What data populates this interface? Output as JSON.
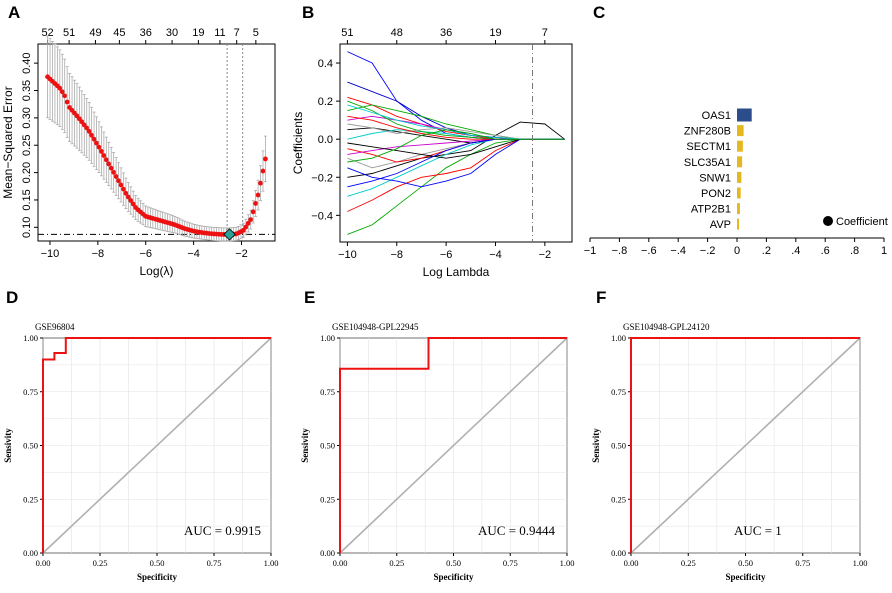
{
  "chart_data": [
    {
      "panel": "A",
      "type": "scatter",
      "title": "",
      "xlabel": "Log(λ)",
      "ylabel": "Mean−Squared Error",
      "xlim": [
        -10.5,
        -0.6
      ],
      "ylim": [
        0.075,
        0.435
      ],
      "x_ticks": [
        -10,
        -8,
        -6,
        -4,
        -2
      ],
      "x_tick_labels": [
        "−10",
        "−8",
        "−6",
        "−4",
        "−2"
      ],
      "y_ticks": [
        0.1,
        0.15,
        0.2,
        0.25,
        0.3,
        0.35,
        0.4
      ],
      "y_tick_labels": [
        "0.10",
        "0.15",
        "0.20",
        "0.25",
        "0.30",
        "0.35",
        "0.40"
      ],
      "top_ticks": [
        -10.1,
        -9.2,
        -8.1,
        -7.1,
        -6.0,
        -4.9,
        -3.8,
        -2.9,
        -2.2,
        -1.4
      ],
      "top_labels": [
        "52",
        "51",
        "49",
        "45",
        "36",
        "30",
        "19",
        "11",
        "7",
        "5"
      ],
      "vlines": [
        -2.6,
        -1.95
      ],
      "hline": 0.087,
      "selected_point": [
        -2.5,
        0.087
      ],
      "series": [
        {
          "name": "mse",
          "x": [
            -10.1,
            -9.6,
            -9.4,
            -9.2,
            -8.8,
            -8.4,
            -8.0,
            -7.6,
            -7.2,
            -6.8,
            -6.4,
            -6.0,
            -5.6,
            -5.2,
            -4.8,
            -4.4,
            -4.0,
            -3.6,
            -3.2,
            -2.8,
            -2.5,
            -2.2,
            -1.9,
            -1.6,
            -1.3,
            -1.0
          ],
          "y": [
            0.375,
            0.355,
            0.342,
            0.32,
            0.3,
            0.278,
            0.25,
            0.22,
            0.19,
            0.16,
            0.135,
            0.12,
            0.115,
            0.11,
            0.105,
            0.098,
            0.093,
            0.09,
            0.088,
            0.087,
            0.087,
            0.088,
            0.095,
            0.115,
            0.16,
            0.225
          ]
        }
      ]
    },
    {
      "panel": "B",
      "type": "line",
      "title": "",
      "xlabel": "Log Lambda",
      "ylabel": "Coefficients",
      "xlim": [
        -10.3,
        -0.9
      ],
      "ylim": [
        -0.54,
        0.5
      ],
      "x_ticks": [
        -10,
        -8,
        -6,
        -4,
        -2
      ],
      "x_tick_labels": [
        "−10",
        "−8",
        "−6",
        "−4",
        "−2"
      ],
      "y_ticks": [
        -0.4,
        -0.2,
        0.0,
        0.2,
        0.4
      ],
      "y_tick_labels": [
        "−0.4",
        "−0.2",
        "0.0",
        "0.2",
        "0.4"
      ],
      "top_ticks": [
        -10,
        -8,
        -6,
        -4,
        -2
      ],
      "top_labels": [
        "51",
        "48",
        "36",
        "19",
        "7"
      ],
      "vline": -2.5,
      "series": [
        {
          "name": "s1",
          "color": "#0000ff",
          "x": [
            -10,
            -9,
            -8,
            -7,
            -6,
            -5,
            -4
          ],
          "y": [
            0.46,
            0.4,
            0.2,
            0.1,
            0.03,
            0.01,
            0
          ]
        },
        {
          "name": "s2",
          "color": "#00aa00",
          "x": [
            -10,
            -9,
            -8,
            -7,
            -6,
            -5,
            -4,
            -3
          ],
          "y": [
            -0.5,
            -0.45,
            -0.35,
            -0.25,
            -0.15,
            -0.08,
            -0.02,
            0
          ]
        },
        {
          "name": "s3",
          "color": "#ff0000",
          "x": [
            -10,
            -9,
            -8,
            -7,
            -6,
            -5,
            -4
          ],
          "y": [
            0.22,
            0.18,
            0.12,
            0.08,
            0.04,
            0.02,
            0
          ]
        },
        {
          "name": "s4",
          "color": "#000000",
          "x": [
            -10,
            -9,
            -8,
            -7,
            -6,
            -5,
            -4,
            -3,
            -2,
            -1.2
          ],
          "y": [
            -0.2,
            -0.18,
            -0.14,
            -0.1,
            -0.08,
            -0.06,
            0.02,
            0.09,
            0.08,
            0
          ]
        },
        {
          "name": "s5",
          "color": "#00cccc",
          "x": [
            -10,
            -9,
            -8,
            -7,
            -6,
            -5,
            -4
          ],
          "y": [
            -0.3,
            -0.26,
            -0.2,
            -0.14,
            -0.08,
            -0.03,
            0
          ]
        },
        {
          "name": "s6",
          "color": "#cc00cc",
          "x": [
            -10,
            -9,
            -8,
            -7,
            -6,
            -5,
            -4,
            -3
          ],
          "y": [
            0.1,
            0.12,
            0.1,
            0.08,
            0.05,
            0.02,
            0.01,
            0
          ]
        },
        {
          "name": "s7",
          "color": "#999999",
          "x": [
            -10,
            -9,
            -8,
            -7,
            -6,
            -5,
            -4
          ],
          "y": [
            -0.1,
            -0.15,
            -0.12,
            -0.08,
            -0.05,
            -0.02,
            0
          ]
        },
        {
          "name": "s8",
          "color": "#0000cc",
          "x": [
            -10,
            -9,
            -8,
            -7,
            -6,
            -5,
            -4,
            -3
          ],
          "y": [
            0.3,
            0.25,
            0.2,
            0.12,
            0.06,
            0.02,
            0.01,
            0
          ]
        },
        {
          "name": "s9",
          "color": "#ff0000",
          "x": [
            -10,
            -9,
            -8,
            -7,
            -6,
            -5,
            -4
          ],
          "y": [
            -0.05,
            -0.08,
            -0.12,
            -0.1,
            -0.06,
            -0.02,
            0
          ]
        },
        {
          "name": "s10",
          "color": "#00aa00",
          "x": [
            -10,
            -9,
            -8,
            -7,
            -6,
            -5,
            -4,
            -3
          ],
          "y": [
            0.15,
            0.18,
            0.15,
            0.12,
            0.08,
            0.05,
            0.02,
            0
          ]
        },
        {
          "name": "s11",
          "color": "#000000",
          "x": [
            -10,
            -9,
            -8,
            -7,
            -6,
            -5,
            -4
          ],
          "y": [
            0.05,
            0.06,
            0.04,
            0.02,
            0.0,
            -0.02,
            0
          ]
        },
        {
          "name": "s12",
          "color": "#ff0000",
          "x": [
            -10,
            -9,
            -8,
            -7,
            -6,
            -5,
            -4,
            -3
          ],
          "y": [
            -0.38,
            -0.32,
            -0.25,
            -0.2,
            -0.18,
            -0.15,
            -0.06,
            0
          ]
        },
        {
          "name": "s13",
          "color": "#00cccc",
          "x": [
            -10,
            -9,
            -8,
            -7,
            -6,
            -5,
            -4
          ],
          "y": [
            0.0,
            0.03,
            0.05,
            0.04,
            0.03,
            0.01,
            0
          ]
        },
        {
          "name": "s14",
          "color": "#0000ff",
          "x": [
            -10,
            -9,
            -8,
            -7,
            -6,
            -5,
            -4,
            -3
          ],
          "y": [
            -0.15,
            -0.2,
            -0.22,
            -0.25,
            -0.22,
            -0.18,
            -0.08,
            0
          ]
        },
        {
          "name": "s15",
          "color": "#00aa00",
          "x": [
            -10,
            -9,
            -8,
            -7,
            -6,
            -5,
            -4
          ],
          "y": [
            0.2,
            0.15,
            0.08,
            0.04,
            0.02,
            0.01,
            0
          ]
        },
        {
          "name": "s16",
          "color": "#cc00cc",
          "x": [
            -10,
            -9,
            -8,
            -7,
            -6,
            -5,
            -4
          ],
          "y": [
            -0.08,
            -0.06,
            -0.04,
            -0.03,
            -0.02,
            -0.01,
            0
          ]
        },
        {
          "name": "s17",
          "color": "#999999",
          "x": [
            -10,
            -9,
            -8,
            -7,
            -6,
            -5,
            -4,
            -3
          ],
          "y": [
            0.08,
            0.06,
            0.03,
            0.05,
            0.06,
            0.04,
            0.02,
            0
          ]
        },
        {
          "name": "s18",
          "color": "#000000",
          "x": [
            -10,
            -9,
            -8,
            -7,
            -6,
            -5,
            -4,
            -3
          ],
          "y": [
            -0.02,
            -0.04,
            -0.06,
            -0.08,
            -0.1,
            -0.08,
            -0.04,
            0
          ]
        },
        {
          "name": "s19",
          "color": "#ff0000",
          "x": [
            -10,
            -9,
            -8,
            -7,
            -6,
            -5,
            -4
          ],
          "y": [
            0.12,
            0.1,
            0.06,
            0.03,
            0.01,
            0.0,
            0
          ]
        },
        {
          "name": "s20",
          "color": "#0000ff",
          "x": [
            -10,
            -9,
            -8,
            -7,
            -6,
            -5,
            -4
          ],
          "y": [
            -0.25,
            -0.22,
            -0.18,
            -0.12,
            -0.06,
            -0.02,
            0
          ]
        },
        {
          "name": "s21",
          "color": "#00cccc",
          "x": [
            -10,
            -9,
            -8,
            -7,
            -6,
            -5,
            -4,
            -3
          ],
          "y": [
            0.18,
            0.14,
            0.1,
            0.07,
            0.05,
            0.02,
            0.01,
            0
          ]
        },
        {
          "name": "s22",
          "color": "#00aa00",
          "x": [
            -10,
            -9,
            -8,
            -7,
            -6,
            -5,
            -4
          ],
          "y": [
            -0.12,
            -0.1,
            -0.05,
            0.02,
            0.05,
            0.03,
            0
          ]
        }
      ]
    },
    {
      "panel": "C",
      "type": "bar",
      "title": "",
      "xlabel": "",
      "ylabel": "",
      "xlim": [
        -1,
        1
      ],
      "x_ticks": [
        -1,
        -0.8,
        -0.6,
        -0.4,
        -0.2,
        0,
        0.2,
        0.4,
        0.6,
        0.8,
        1
      ],
      "x_tick_labels": [
        "−1",
        "−.8",
        "−.6",
        "−.4",
        "−.2",
        "0",
        ".2",
        ".4",
        ".6",
        ".8",
        "1"
      ],
      "categories": [
        "OAS1",
        "ZNF280B",
        "SECTM1",
        "SLC35A1",
        "SNW1",
        "PON2",
        "ATP2B1",
        "AVP"
      ],
      "values": [
        0.1,
        0.045,
        0.04,
        0.035,
        0.03,
        0.025,
        0.02,
        0.012
      ],
      "bar_colors": [
        "#2b4d8c",
        "#e6b820",
        "#e6b820",
        "#e6b820",
        "#e6b820",
        "#e6b820",
        "#e6b820",
        "#e6b820"
      ],
      "legend": "Coefficient"
    },
    {
      "panel": "D",
      "type": "line",
      "title": "GSE96804",
      "xlabel": "Specificity",
      "ylabel": "Sensivity",
      "xlim": [
        0,
        1
      ],
      "ylim": [
        0,
        1
      ],
      "ticks": [
        0,
        0.25,
        0.5,
        0.75,
        1
      ],
      "tick_labels": [
        "0.00",
        "0.25",
        "0.50",
        "0.75",
        "1.00"
      ],
      "auc_label": "AUC = 0.9915",
      "roc": {
        "x": [
          0,
          0,
          0,
          0.05,
          0.05,
          0.1,
          0.1,
          1
        ],
        "y": [
          0,
          0.9,
          0.9,
          0.9,
          0.93,
          0.93,
          1.0,
          1.0
        ]
      }
    },
    {
      "panel": "E",
      "type": "line",
      "title": "GSE104948-GPL22945",
      "xlabel": "Specificity",
      "ylabel": "Sensivity",
      "xlim": [
        0,
        1
      ],
      "ylim": [
        0,
        1
      ],
      "ticks": [
        0,
        0.25,
        0.5,
        0.75,
        1
      ],
      "tick_labels": [
        "0.00",
        "0.25",
        "0.50",
        "0.75",
        "1.00"
      ],
      "auc_label": "AUC = 0.9444",
      "roc": {
        "x": [
          0,
          0,
          0.39,
          0.39,
          1
        ],
        "y": [
          0,
          0.857,
          0.857,
          1.0,
          1.0
        ]
      }
    },
    {
      "panel": "F",
      "type": "line",
      "title": "GSE104948-GPL24120",
      "xlabel": "Specificity",
      "ylabel": "Sensivity",
      "xlim": [
        0,
        1
      ],
      "ylim": [
        0,
        1
      ],
      "ticks": [
        0,
        0.25,
        0.5,
        0.75,
        1
      ],
      "tick_labels": [
        "0.00",
        "0.25",
        "0.50",
        "0.75",
        "1.00"
      ],
      "auc_label": "AUC = 1",
      "roc": {
        "x": [
          0,
          0,
          1
        ],
        "y": [
          0,
          1.0,
          1.0
        ]
      }
    }
  ],
  "panel_labels": [
    "A",
    "B",
    "C",
    "D",
    "E",
    "F"
  ],
  "colors": {
    "red": "#ee1111",
    "grey": "#aaaaaa",
    "diag": "#b0b0b0"
  }
}
